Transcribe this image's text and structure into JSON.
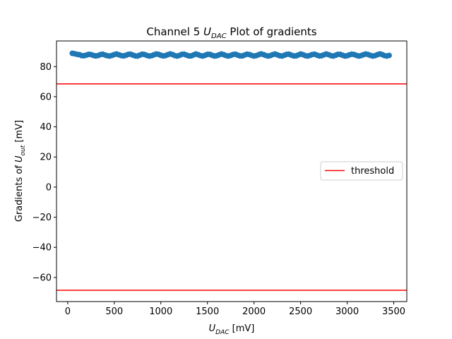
{
  "chart_data": {
    "type": "scatter",
    "title": {
      "prefix": "Channel 5 ",
      "var_main": "U",
      "var_sub": "DAC",
      "suffix": " Plot of gradients"
    },
    "xlabel": {
      "var_main": "U",
      "var_sub": "DAC",
      "suffix": " [mV]"
    },
    "ylabel": {
      "prefix": "Gradients of ",
      "var_main": "U",
      "var_sub": "out",
      "suffix": " [mV]"
    },
    "xlim": [
      -120,
      3640
    ],
    "ylim": [
      -76,
      97
    ],
    "xticks": [
      0,
      500,
      1000,
      1500,
      2000,
      2500,
      3000,
      3500
    ],
    "xtick_labels": [
      "0",
      "500",
      "1000",
      "1500",
      "2000",
      "2500",
      "3000",
      "3500"
    ],
    "yticks": [
      -60,
      -40,
      -20,
      0,
      20,
      40,
      60,
      80
    ],
    "ytick_labels": [
      "−60",
      "−40",
      "−20",
      "0",
      "20",
      "40",
      "60",
      "80"
    ],
    "grid": false,
    "legend": {
      "position": "center-right",
      "entries": [
        "threshold"
      ]
    },
    "series": [
      {
        "kind": "scatter",
        "color": "#1f77b4",
        "x_start": 50,
        "x_step": 25,
        "x_end": 3450,
        "y": [
          88.8,
          88.5,
          88.1,
          87.9,
          87.3,
          87.2,
          87.6,
          88.1,
          88.0,
          87.4,
          87.1,
          87.3,
          87.9,
          88.2,
          87.7,
          87.2,
          87.0,
          87.4,
          88.0,
          88.3,
          87.8,
          87.3,
          87.1,
          87.5,
          88.1,
          88.2,
          87.6,
          87.1,
          87.0,
          87.6,
          88.2,
          88.0,
          87.4,
          87.0,
          87.2,
          87.8,
          88.3,
          88.1,
          87.5,
          87.1,
          87.3,
          87.9,
          88.4,
          88.0,
          87.3,
          87.0,
          87.4,
          88.1,
          88.2,
          87.6,
          87.1,
          87.1,
          87.7,
          88.3,
          87.9,
          87.3,
          87.0,
          87.5,
          88.1,
          88.1,
          87.5,
          87.0,
          87.2,
          87.8,
          88.3,
          87.9,
          87.3,
          87.0,
          87.4,
          88.0,
          88.2,
          87.6,
          87.1,
          87.1,
          87.7,
          88.2,
          88.0,
          87.4,
          87.0,
          87.3,
          87.9,
          88.4,
          88.0,
          87.4,
          87.0,
          87.3,
          87.9,
          88.3,
          87.8,
          87.2,
          87.0,
          87.5,
          88.1,
          88.2,
          87.6,
          87.1,
          87.1,
          87.7,
          88.3,
          87.9,
          87.3,
          87.0,
          87.4,
          88.0,
          88.2,
          87.6,
          87.1,
          87.2,
          87.8,
          88.3,
          87.9,
          87.3,
          87.0,
          87.5,
          88.1,
          88.1,
          87.5,
          87.0,
          87.2,
          87.8,
          88.2,
          88.0,
          87.4,
          87.0,
          87.3,
          87.9,
          88.3,
          88.0,
          87.4,
          87.0,
          87.3,
          87.9,
          88.4,
          88.0,
          87.3,
          87.0,
          87.4,
          88.0,
          88.2,
          87.6,
          87.1
        ]
      },
      {
        "kind": "hline",
        "name": "threshold",
        "color": "#ff0000",
        "y": [
          68.5,
          -68.5
        ]
      }
    ]
  }
}
